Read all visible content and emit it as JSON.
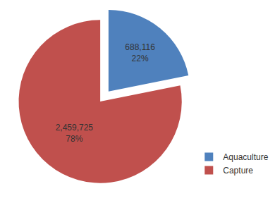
{
  "chart_data": {
    "type": "pie",
    "categories": [
      "Aquaculture",
      "Capture"
    ],
    "values": [
      688116,
      2459725
    ],
    "value_labels": [
      "688,116",
      "2,459,725"
    ],
    "percent_labels": [
      "22%",
      "78%"
    ],
    "colors": [
      "#4f81bd",
      "#c0504d"
    ],
    "data_labels": true,
    "legend": "right"
  }
}
